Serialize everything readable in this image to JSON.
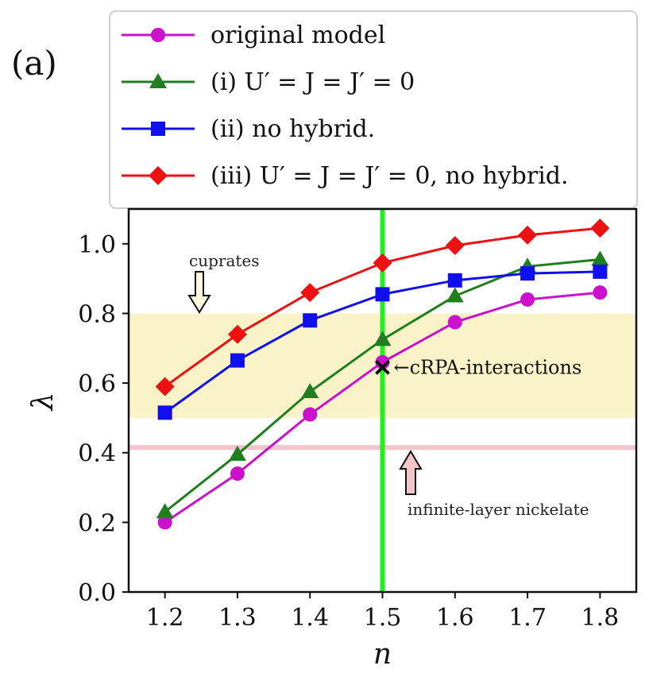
{
  "panel_label": "(a)",
  "chart_data": {
    "type": "line",
    "xlabel": "n",
    "ylabel": "λ",
    "xlim": [
      1.15,
      1.85
    ],
    "ylim": [
      0.0,
      1.1
    ],
    "x": [
      1.2,
      1.3,
      1.4,
      1.5,
      1.6,
      1.7,
      1.8
    ],
    "xticks": [
      "1.2",
      "1.3",
      "1.4",
      "1.5",
      "1.6",
      "1.7",
      "1.8"
    ],
    "yticks": [
      "0.0",
      "0.2",
      "0.4",
      "0.6",
      "0.8",
      "1.0"
    ],
    "series": [
      {
        "name": "original model",
        "marker": "circle",
        "color": "#cc11cc",
        "values": [
          0.2,
          0.34,
          0.51,
          0.66,
          0.775,
          0.84,
          0.86
        ]
      },
      {
        "name": "(i) U′ = J = J′ = 0",
        "marker": "triangle",
        "color": "#1f7f1f",
        "values": [
          0.23,
          0.395,
          0.575,
          0.725,
          0.85,
          0.935,
          0.955
        ]
      },
      {
        "name": "(ii) no hybrid.",
        "marker": "square",
        "color": "#1010ee",
        "values": [
          0.515,
          0.665,
          0.78,
          0.855,
          0.895,
          0.915,
          0.92
        ]
      },
      {
        "name": "(iii) U′ = J = J′ = 0, no hybrid.",
        "marker": "diamond",
        "color": "#ee1111",
        "values": [
          0.59,
          0.74,
          0.86,
          0.945,
          0.995,
          1.025,
          1.045
        ]
      }
    ],
    "shaded_band": {
      "y_from": 0.5,
      "y_to": 0.8,
      "color": "#fbf3c8"
    },
    "vertical_line": {
      "x": 1.5,
      "color": "#22ee22"
    },
    "horizontal_line": {
      "y": 0.415,
      "color": "#f7c2cc"
    },
    "crpa_point": {
      "x": 1.5,
      "y": 0.645,
      "label": "←cRPA-interactions"
    },
    "annotations": {
      "cuprates": {
        "text": "cuprates",
        "arrow_color": "#fffbe0"
      },
      "nickelate": {
        "text": "infinite-layer nickelate",
        "arrow_color": "#f2c6c9"
      }
    },
    "legend_position": "top (above plot)"
  }
}
